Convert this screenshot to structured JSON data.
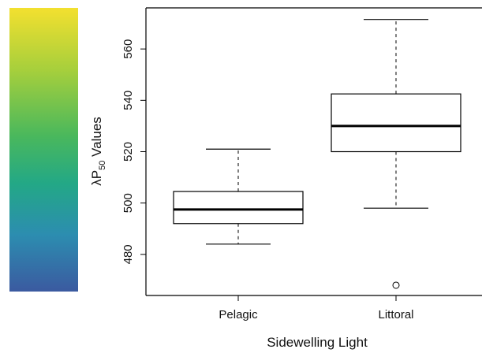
{
  "chart_data": {
    "type": "box",
    "x_label": "Sidewelling Light",
    "y_label": {
      "main": "λP",
      "sub": "50",
      "rest": " Values"
    },
    "categories": [
      "Pelagic",
      "Littoral"
    ],
    "series": [
      {
        "whisker_low": [
          484,
          498
        ],
        "q1": [
          492,
          520
        ],
        "median": [
          497.5,
          530
        ],
        "q3": [
          504.5,
          542.5
        ],
        "whisker_high": [
          521,
          571.5
        ],
        "outliers": [
          [],
          [
            468
          ]
        ],
        "color": "#000000"
      }
    ],
    "ylim": [
      464,
      576
    ],
    "yticks": [
      480,
      500,
      520,
      540,
      560
    ]
  }
}
